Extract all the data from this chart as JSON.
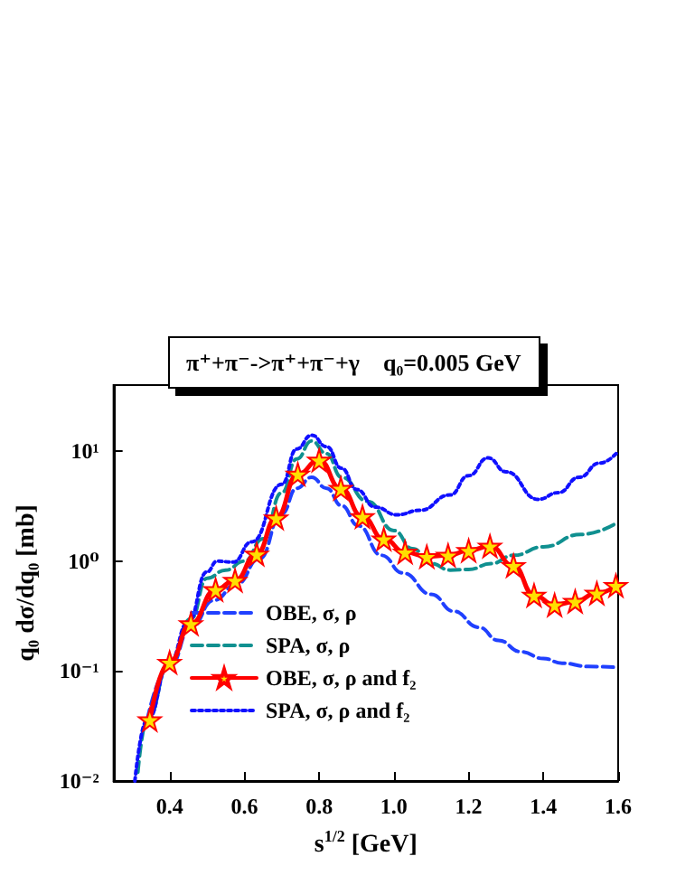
{
  "chart_data": {
    "type": "line",
    "title": "π⁺+π⁻->π⁺+π⁻+γ    q₀=0.005 GeV",
    "xlabel": "s$^{1/2}$ [GeV]",
    "ylabel": "q₀ dσ/dq₀ [mb]",
    "log": "y",
    "xlim": [
      0.25,
      1.6
    ],
    "xticks": [
      0.4,
      0.6,
      0.8,
      {
        "value": 1,
        "label": "1.0"
      },
      1.2,
      1.4,
      1.6
    ],
    "ylim": [
      0.01,
      40
    ],
    "yticks": [
      {
        "value": 0.01,
        "label": "10⁻²"
      },
      {
        "value": 0.1,
        "label": "10⁻¹"
      },
      {
        "value": 1,
        "label": "10⁰"
      },
      {
        "value": 10,
        "label": "10¹"
      }
    ],
    "legend": "bottom",
    "grid": false,
    "series": [
      {
        "name": "OBE, σ, ρ",
        "color": "#2040ff",
        "line_style": "dashed",
        "marker": "none",
        "x": [
          0.34,
          0.4,
          0.457,
          0.518,
          0.58,
          0.64,
          0.7,
          0.74,
          0.78,
          0.82,
          0.86,
          0.905,
          0.967,
          1.024,
          1.1,
          1.16,
          1.227,
          1.28,
          1.34,
          1.4,
          1.45,
          1.52,
          1.6
        ],
        "values": [
          0.036,
          0.11,
          0.25,
          0.44,
          0.62,
          1.05,
          2.7,
          4.6,
          5.8,
          4.6,
          3.2,
          2.1,
          1.13,
          0.78,
          0.5,
          0.35,
          0.25,
          0.19,
          0.15,
          0.13,
          0.118,
          0.11,
          0.108
        ]
      },
      {
        "name": "SPA, σ, ρ",
        "color": "#109090",
        "line_style": "dashed",
        "marker": "none",
        "x": [
          0.315,
          0.34,
          0.4,
          0.457,
          0.5,
          0.55,
          0.6,
          0.65,
          0.7,
          0.74,
          0.78,
          0.82,
          0.86,
          0.93,
          1.0,
          1.05,
          1.1,
          1.15,
          1.2,
          1.26,
          1.32,
          1.4,
          1.5,
          1.6
        ],
        "values": [
          0.012,
          0.036,
          0.12,
          0.3,
          0.7,
          0.83,
          1.0,
          1.6,
          4.2,
          8.5,
          12.4,
          9.5,
          5.8,
          3.5,
          1.9,
          1.3,
          0.95,
          0.83,
          0.84,
          0.95,
          1.13,
          1.35,
          1.75,
          2.27
        ]
      },
      {
        "name": "OBE, σ, ρ and f₂",
        "color": "#ff0000",
        "line_style": "solid",
        "marker": "star",
        "x": [
          0.347,
          0.4,
          0.457,
          0.523,
          0.575,
          0.633,
          0.685,
          0.743,
          0.8,
          0.858,
          0.916,
          0.973,
          1.03,
          1.088,
          1.145,
          1.2,
          1.257,
          1.32,
          1.375,
          1.43,
          1.485,
          1.543,
          1.594
        ],
        "values": [
          0.036,
          0.12,
          0.27,
          0.55,
          0.67,
          1.16,
          2.47,
          6.2,
          8.3,
          4.6,
          2.54,
          1.59,
          1.21,
          1.1,
          1.13,
          1.25,
          1.37,
          0.91,
          0.49,
          0.4,
          0.43,
          0.51,
          0.6
        ]
      },
      {
        "name": "SPA, σ, ρ and f₂",
        "color": "#1010ff",
        "line_style": "dotted",
        "marker": "none",
        "x": [
          0.307,
          0.34,
          0.4,
          0.45,
          0.5,
          0.527,
          0.57,
          0.62,
          0.7,
          0.74,
          0.78,
          0.82,
          0.86,
          0.9,
          0.95,
          1.008,
          1.07,
          1.15,
          1.2,
          1.252,
          1.3,
          1.386,
          1.44,
          1.496,
          1.55,
          1.6
        ],
        "values": [
          0.01,
          0.036,
          0.12,
          0.28,
          0.8,
          1.0,
          0.98,
          1.5,
          5.0,
          10.5,
          14,
          11,
          7,
          4.5,
          3.1,
          2.64,
          2.9,
          4.0,
          6.0,
          8.7,
          6.5,
          3.65,
          4.2,
          5.8,
          7.8,
          10
        ]
      }
    ]
  }
}
